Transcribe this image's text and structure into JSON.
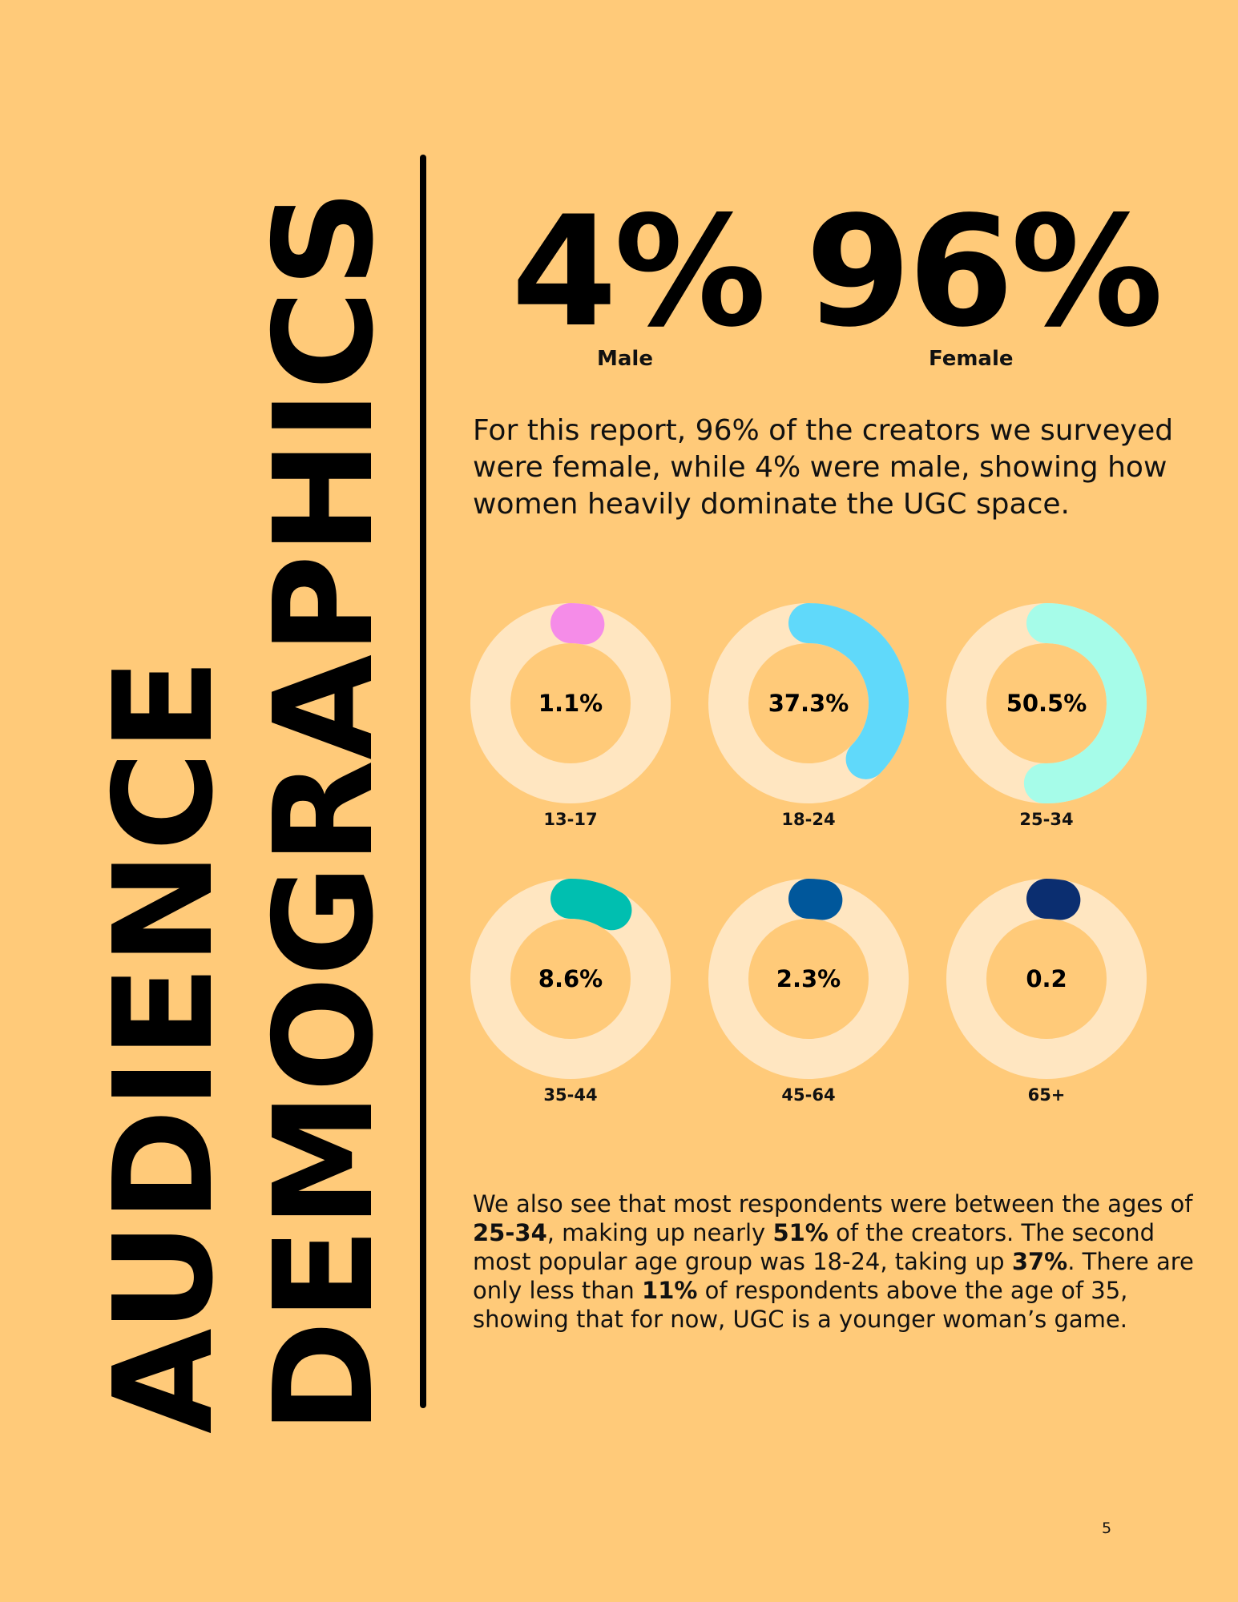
{
  "title": {
    "line1": "AUDIENCE",
    "line2": "DEMOGRAPHICS"
  },
  "gender": {
    "male": {
      "value": "4%",
      "label": "Male"
    },
    "female": {
      "value": "96%",
      "label": "Female"
    }
  },
  "paragraph1": "For this report, 96% of the creators we surveyed were female, while 4% were male, showing how women heavily dominate the UGC space.",
  "paragraph2": {
    "parts": [
      {
        "text": "We also see that most respondents were between the ages of ",
        "bold": false
      },
      {
        "text": "25-34",
        "bold": true
      },
      {
        "text": ", making up nearly ",
        "bold": false
      },
      {
        "text": "51%",
        "bold": true
      },
      {
        "text": " of the creators. The second most popular age group was 18-24, taking up ",
        "bold": false
      },
      {
        "text": "37%",
        "bold": true
      },
      {
        "text": ". There are only less than ",
        "bold": false
      },
      {
        "text": "11%",
        "bold": true
      },
      {
        "text": " of respondents above the age of 35, showing that for now, UGC is a younger woman’s game.",
        "bold": false
      }
    ]
  },
  "page_number": "5",
  "chart_data": {
    "type": "donut",
    "track_color": "#FFE6C1",
    "items": [
      {
        "category": "13-17",
        "value": 1.1,
        "label": "1.1%",
        "color": "#F58CE8"
      },
      {
        "category": "18-24",
        "value": 37.3,
        "label": "37.3%",
        "color": "#60D9FA"
      },
      {
        "category": "25-34",
        "value": 50.5,
        "label": "50.5%",
        "color": "#A6FCE9"
      },
      {
        "category": "35-44",
        "value": 8.6,
        "label": "8.6%",
        "color": "#00BFB0"
      },
      {
        "category": "45-64",
        "value": 2.3,
        "label": "2.3%",
        "color": "#00579B"
      },
      {
        "category": "65+",
        "value": 0.2,
        "label": "0.2",
        "color": "#0B2E70"
      }
    ]
  }
}
